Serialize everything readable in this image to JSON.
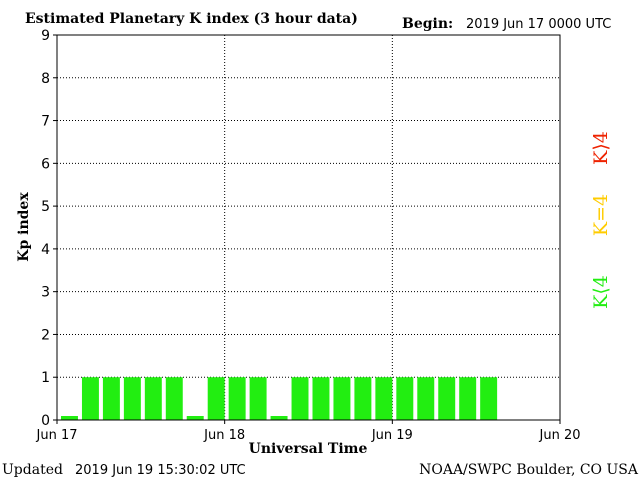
{
  "header": {
    "title": "Estimated Planetary K index (3 hour data)",
    "begin_label": "Begin:",
    "begin_value": "2019 Jun 17 0000 UTC"
  },
  "footer": {
    "updated_label": "Updated",
    "updated_value": "2019 Jun 19 15:30:02 UTC",
    "source": "NOAA/SWPC Boulder, CO USA"
  },
  "legend": {
    "items": [
      {
        "label": "K⟨4",
        "color": "#22ee11"
      },
      {
        "label": "K=4",
        "color": "#ffcc00"
      },
      {
        "label": "K⟩4",
        "color": "#ee2200"
      }
    ]
  },
  "chart_data": {
    "type": "bar",
    "xlabel": "Universal Time",
    "ylabel": "Kp index",
    "ylim": [
      0,
      9
    ],
    "yticks": [
      "0",
      "1",
      "2",
      "3",
      "4",
      "5",
      "6",
      "7",
      "8",
      "9"
    ],
    "xticks": [
      "Jun 17",
      "Jun 18",
      "Jun 19",
      "Jun 20"
    ],
    "x_range_hours": [
      0,
      72
    ],
    "bin_hours": 3,
    "grid": true,
    "bar_color": "#22ee11",
    "values": [
      0,
      1,
      1,
      1,
      1,
      1,
      0,
      1,
      1,
      1,
      0,
      1,
      1,
      1,
      1,
      1,
      1,
      1,
      1,
      1,
      1
    ]
  }
}
